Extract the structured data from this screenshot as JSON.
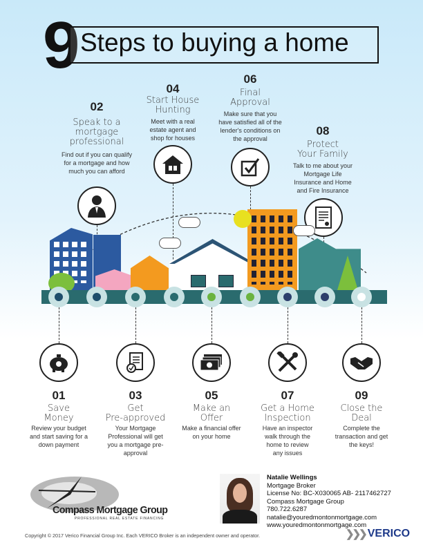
{
  "title": {
    "number": "9",
    "text": "Steps to buying a home"
  },
  "top_steps": [
    {
      "number": "02",
      "title": [
        "Speak to a",
        "mortgage",
        "professional"
      ],
      "description": "Find out if you can qualify for a mortgage and how much you can afford",
      "icon": "person-icon"
    },
    {
      "number": "04",
      "title": [
        "Start House",
        "Hunting"
      ],
      "description": "Meet with a real estate agent and shop for houses",
      "icon": "house-icon"
    },
    {
      "number": "06",
      "title": [
        "Final",
        "Approval"
      ],
      "description": "Make sure that you have satisfied all of the lender's conditions on the approval",
      "icon": "checkbox-icon"
    },
    {
      "number": "08",
      "title": [
        "Protect",
        "Your Family"
      ],
      "description": "Talk to me about your Mortgage Life Insurance and Home and Fire Insurance",
      "icon": "document-icon"
    }
  ],
  "bottom_steps": [
    {
      "number": "01",
      "title": [
        "Save",
        "Money"
      ],
      "description": "Review your budget and start saving for a down payment",
      "icon": "piggy-bank-icon"
    },
    {
      "number": "03",
      "title": [
        "Get",
        "Pre-approved"
      ],
      "description": "Your Mortgage Professional will get you a mortgage pre-approval",
      "icon": "clipboard-icon"
    },
    {
      "number": "05",
      "title": [
        "Make an",
        "Offer"
      ],
      "description": "Make a financial offer on your home",
      "icon": "money-icon"
    },
    {
      "number": "07",
      "title": [
        "Get a Home",
        "Inspection"
      ],
      "description": "Have an inspector walk through the home to review any issues",
      "icon": "tools-icon"
    },
    {
      "number": "09",
      "title": [
        "Close the",
        "Deal"
      ],
      "description": "Complete the transaction and get the keys!",
      "icon": "handshake-icon"
    }
  ],
  "colors": {
    "ground": "#2a6b6e",
    "dot_fill": "#c8e2e3",
    "dot_dark": "#1e4d6b",
    "dot_green": "#6bb33f",
    "sky": "#c9e9f9"
  },
  "logo": {
    "name": "Compass Mortgage Group",
    "tagline": "PROFESSIONAL REAL ESTATE FINANCING"
  },
  "contact": {
    "name": "Natalie Wellings",
    "role": "Mortgage Broker",
    "license": "License No: BC-X030065  AB- 2117462727",
    "company": "Compass Mortgage Group",
    "phone": "780.722.6287",
    "email": "natalie@youredmontonmortgage.com",
    "website": "www.youredmontonmortgage.com"
  },
  "footer": {
    "copyright": "Copyright © 2017 Verico Financial Group Inc. Each VERICO Broker is an independent owner and operator.",
    "brand": "VERICO"
  }
}
